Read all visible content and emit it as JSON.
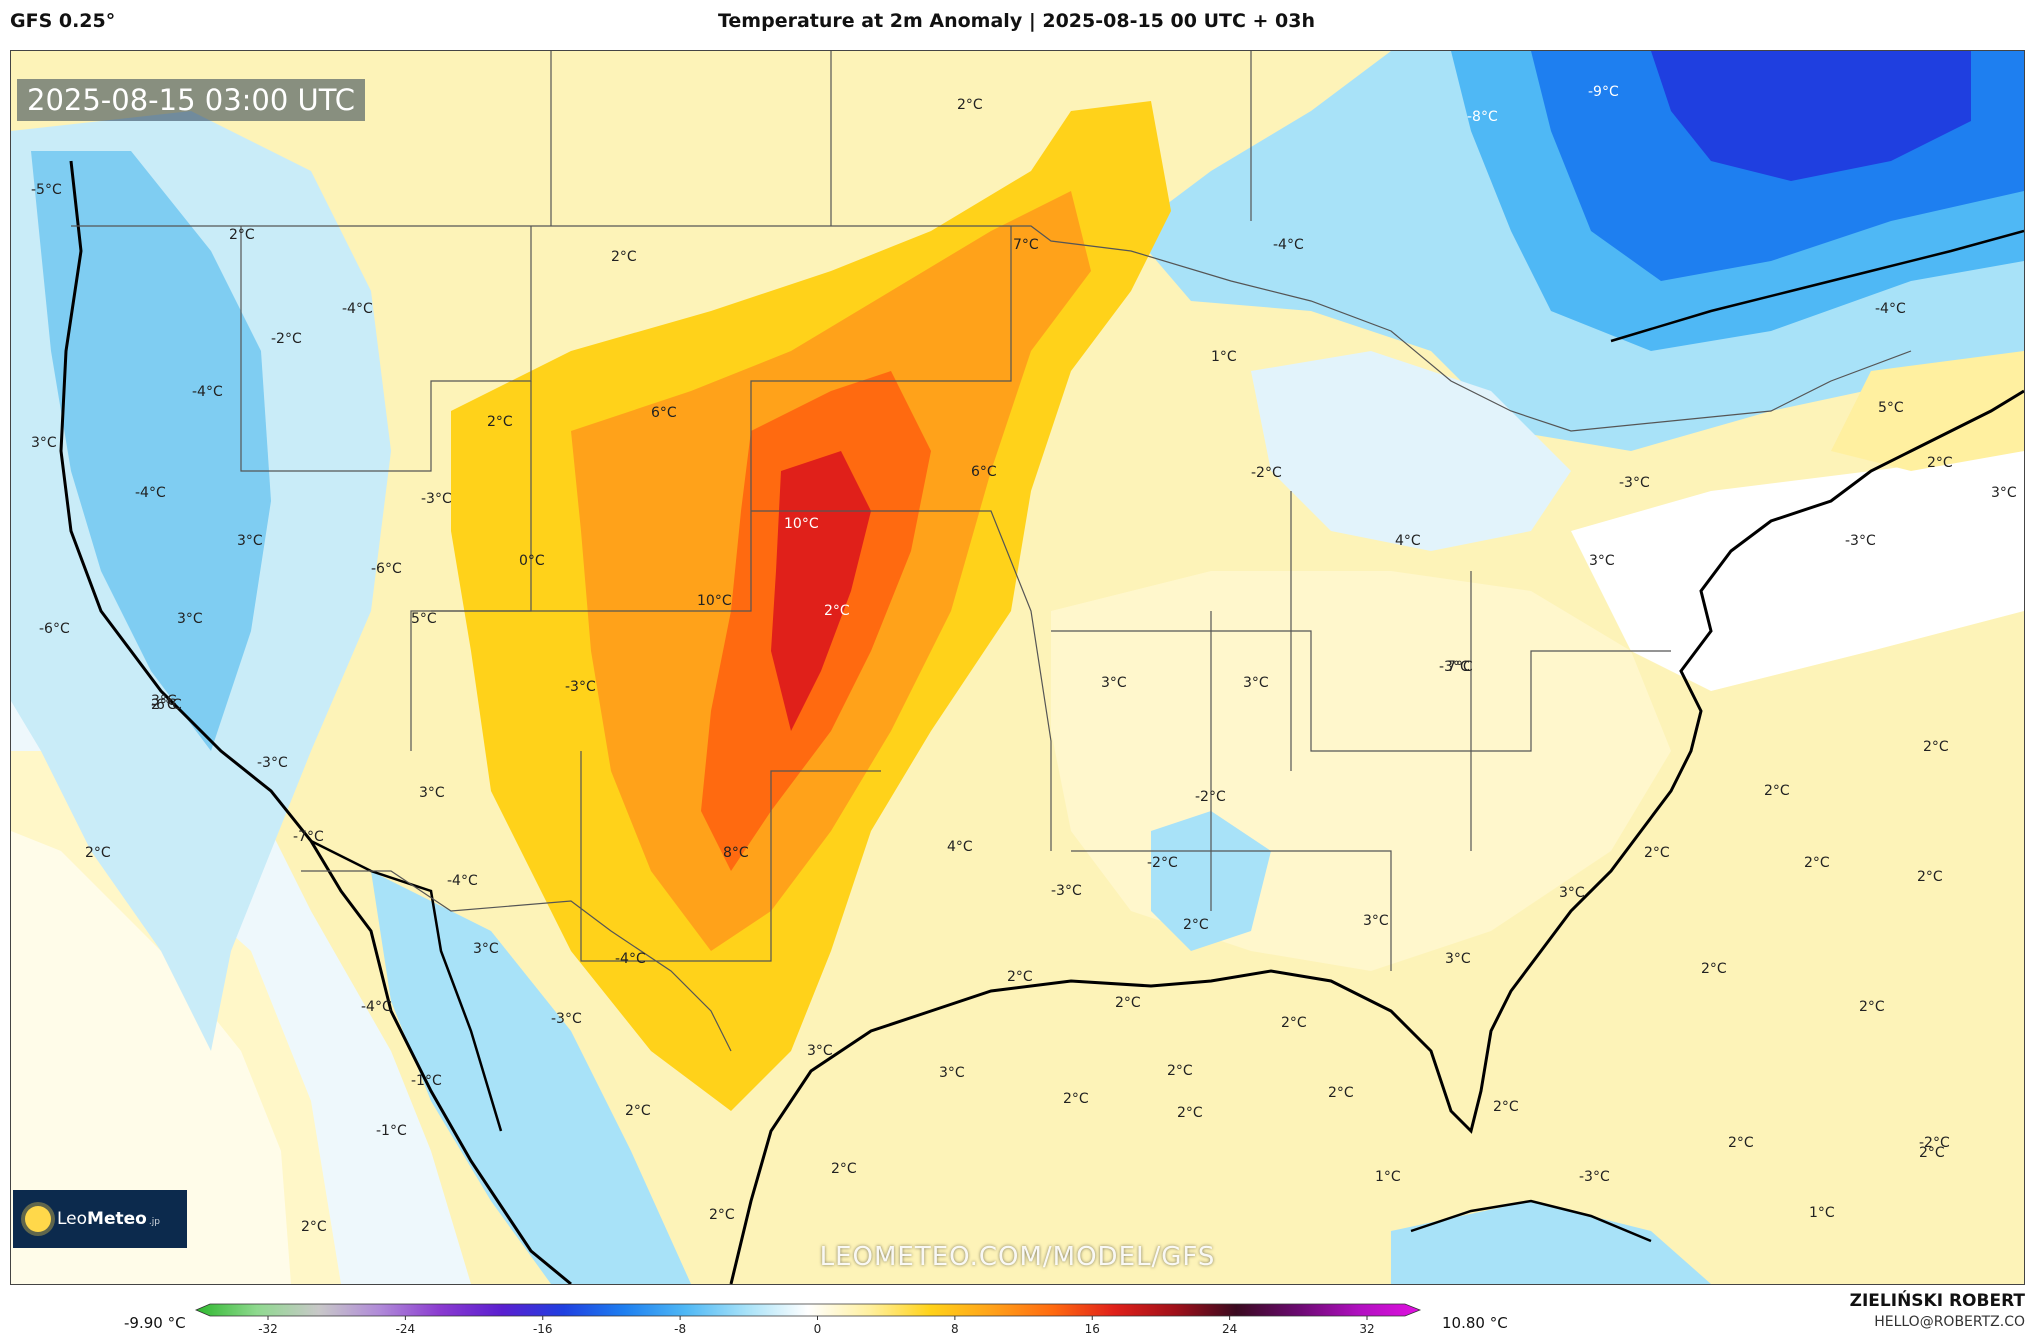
{
  "header": {
    "model": "GFS 0.25°",
    "title": "Temperature at 2m Anomaly | 2025-08-15 00 UTC + 03h"
  },
  "map": {
    "valid_time": "2025-08-15 03:00 UTC",
    "watermark": "LEOMETEO.COM/MODEL/GFS",
    "logo": {
      "brand_light": "Leo",
      "brand_bold": "Meteo",
      "tld": ".jp"
    },
    "labels": [
      {
        "id": "l1",
        "text": "-5°C"
      },
      {
        "id": "l2",
        "text": "2°C"
      },
      {
        "id": "l3",
        "text": "2°C"
      },
      {
        "id": "l4",
        "text": "-9°C"
      },
      {
        "id": "l5",
        "text": "-8°C"
      },
      {
        "id": "l6",
        "text": "7°C"
      },
      {
        "id": "l7",
        "text": "-4°C"
      },
      {
        "id": "l8",
        "text": "2°C"
      },
      {
        "id": "l9",
        "text": "-4°C"
      },
      {
        "id": "l10",
        "text": "-2°C"
      },
      {
        "id": "l11",
        "text": "-4°C"
      },
      {
        "id": "l12",
        "text": "3°C"
      },
      {
        "id": "l13",
        "text": "2°C"
      },
      {
        "id": "l14",
        "text": "6°C"
      },
      {
        "id": "l15",
        "text": "1°C"
      },
      {
        "id": "l16",
        "text": "-4°C"
      },
      {
        "id": "l17",
        "text": "5°C"
      },
      {
        "id": "l18",
        "text": "-4°C"
      },
      {
        "id": "l19",
        "text": "-3°C"
      },
      {
        "id": "l20",
        "text": "10°C"
      },
      {
        "id": "l21",
        "text": "6°C"
      },
      {
        "id": "l22",
        "text": "-2°C"
      },
      {
        "id": "l23",
        "text": "-3°C"
      },
      {
        "id": "l24",
        "text": "2°C"
      },
      {
        "id": "l25",
        "text": "3°C"
      },
      {
        "id": "l26",
        "text": "-6°C"
      },
      {
        "id": "l27",
        "text": "0°C"
      },
      {
        "id": "l28",
        "text": "4°C"
      },
      {
        "id": "l29",
        "text": "3°C"
      },
      {
        "id": "l30",
        "text": "3°C"
      },
      {
        "id": "l31",
        "text": "-3°C"
      },
      {
        "id": "l32",
        "text": "3°C"
      },
      {
        "id": "l33",
        "text": "5°C"
      },
      {
        "id": "l34",
        "text": "10°C"
      },
      {
        "id": "l35",
        "text": "2°C"
      },
      {
        "id": "l36",
        "text": "-6°C"
      },
      {
        "id": "l37",
        "text": "3°C"
      },
      {
        "id": "l38",
        "text": "-3°C"
      },
      {
        "id": "l39",
        "text": "3°C"
      },
      {
        "id": "l40",
        "text": "3°C"
      },
      {
        "id": "l41",
        "text": "-3°C"
      },
      {
        "id": "l42",
        "text": "7°C"
      },
      {
        "id": "l43",
        "text": "2°C"
      },
      {
        "id": "l44",
        "text": "-6°C"
      },
      {
        "id": "l45",
        "text": "3°C"
      },
      {
        "id": "l46",
        "text": "-3°C"
      },
      {
        "id": "l47",
        "text": "-2°C"
      },
      {
        "id": "l48",
        "text": "2°C"
      },
      {
        "id": "l49",
        "text": "2°C"
      },
      {
        "id": "l50",
        "text": "-7°C"
      },
      {
        "id": "l51",
        "text": "4°C"
      },
      {
        "id": "l52",
        "text": "-2°C"
      },
      {
        "id": "l53",
        "text": "2°C"
      },
      {
        "id": "l54",
        "text": "8°C"
      },
      {
        "id": "l55",
        "text": "-4°C"
      },
      {
        "id": "l56",
        "text": "2°C"
      },
      {
        "id": "l57",
        "text": "2°C"
      },
      {
        "id": "l58",
        "text": "-3°C"
      },
      {
        "id": "l59",
        "text": "3°C"
      },
      {
        "id": "l60",
        "text": "2°C"
      },
      {
        "id": "l61",
        "text": "3°C"
      },
      {
        "id": "l62",
        "text": "2°C"
      },
      {
        "id": "l63",
        "text": "3°C"
      },
      {
        "id": "l64",
        "text": "-4°C"
      },
      {
        "id": "l65",
        "text": "3°C"
      },
      {
        "id": "l66",
        "text": "2°C"
      },
      {
        "id": "l67",
        "text": "2°C"
      },
      {
        "id": "l68",
        "text": "2°C"
      },
      {
        "id": "l69",
        "text": "-4°C"
      },
      {
        "id": "l70",
        "text": "2°C"
      },
      {
        "id": "l71",
        "text": "2°C"
      },
      {
        "id": "l72",
        "text": "2°C"
      },
      {
        "id": "l73",
        "text": "-3°C"
      },
      {
        "id": "l74",
        "text": "3°C"
      },
      {
        "id": "l75",
        "text": "3°C"
      },
      {
        "id": "l76",
        "text": "2°C"
      },
      {
        "id": "l77",
        "text": "-1°C"
      },
      {
        "id": "l78",
        "text": "2°C"
      },
      {
        "id": "l79",
        "text": "2°C"
      },
      {
        "id": "l80",
        "text": "-1°C"
      },
      {
        "id": "l81",
        "text": "2°C"
      },
      {
        "id": "l82",
        "text": "2°C"
      },
      {
        "id": "l83",
        "text": "2°C"
      },
      {
        "id": "l84",
        "text": "-2°C"
      },
      {
        "id": "l85",
        "text": "2°C"
      },
      {
        "id": "l86",
        "text": "-3°C"
      },
      {
        "id": "l87",
        "text": "1°C"
      },
      {
        "id": "l88",
        "text": "2°C"
      },
      {
        "id": "l89",
        "text": "1°C"
      },
      {
        "id": "l90",
        "text": "2°C"
      },
      {
        "id": "l91",
        "text": "2°C"
      }
    ]
  },
  "colorbar": {
    "min_label": "-9.90 °C",
    "max_label": "10.80 °C",
    "ticks": [
      "-32",
      "-24",
      "-16",
      "-8",
      "0",
      "8",
      "16",
      "24",
      "32"
    ],
    "colors": [
      "#2eb82e",
      "#8fd98f",
      "#c8c8c8",
      "#b08ad8",
      "#8a3ad0",
      "#5a1fd0",
      "#1f3fe0",
      "#1e7ff0",
      "#4fb8f5",
      "#a8e2f8",
      "#ffffff",
      "#fff0a0",
      "#ffd21a",
      "#ffa21a",
      "#ff6a10",
      "#e0201a",
      "#a0101a",
      "#3a0a20",
      "#6a0a70",
      "#b010c0",
      "#e010e0"
    ]
  },
  "footer": {
    "author": "ZIELIŃSKI ROBERT",
    "email": "HELLO@ROBERTZ.CO"
  }
}
